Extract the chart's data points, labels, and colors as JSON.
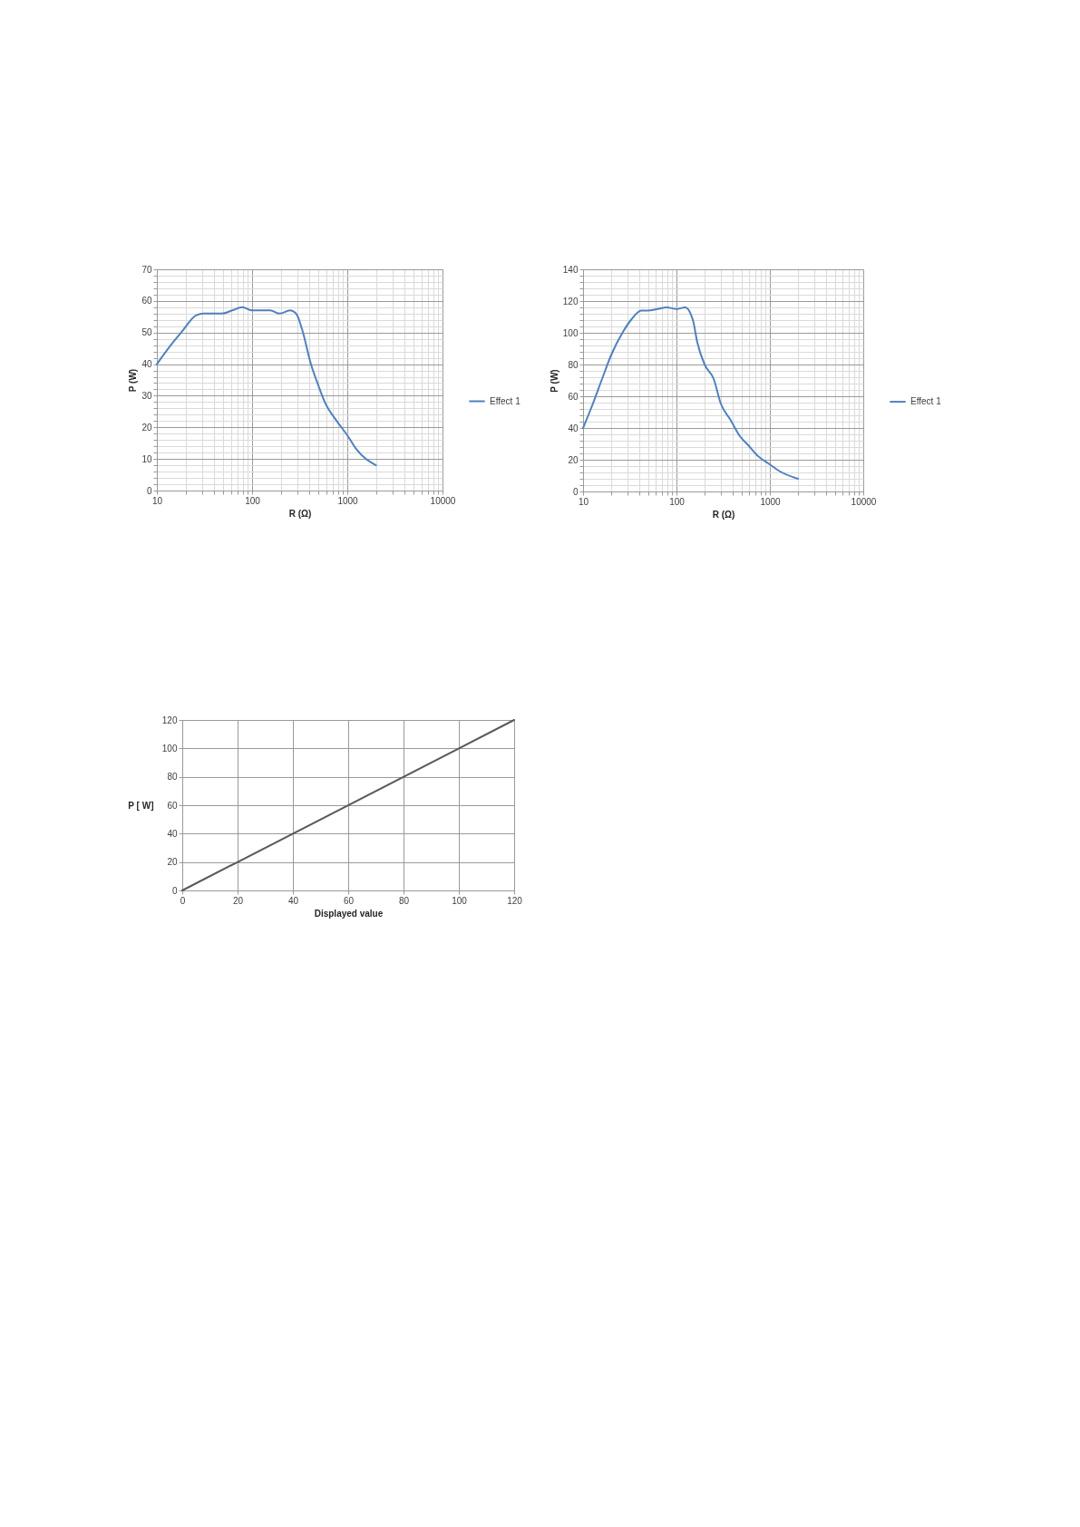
{
  "chart_data": [
    {
      "type": "line",
      "xlabel": "R (Ω)",
      "ylabel": "P (W)",
      "log": "x",
      "grid": true,
      "legend": "right",
      "xlim": [
        10,
        10000
      ],
      "ylim": [
        0,
        70
      ],
      "xticks": [
        10,
        {
          "value": 20,
          "label": null
        },
        {
          "value": 30,
          "label": null
        },
        {
          "value": 40,
          "label": null
        },
        {
          "value": 50,
          "label": null
        },
        {
          "value": 60,
          "label": null
        },
        {
          "value": 70,
          "label": null
        },
        {
          "value": 80,
          "label": null
        },
        {
          "value": 90,
          "label": null
        },
        100,
        {
          "value": 200,
          "label": null
        },
        {
          "value": 300,
          "label": null
        },
        {
          "value": 400,
          "label": null
        },
        {
          "value": 500,
          "label": null
        },
        {
          "value": 600,
          "label": null
        },
        {
          "value": 700,
          "label": null
        },
        {
          "value": 800,
          "label": null
        },
        {
          "value": 900,
          "label": null
        },
        1000,
        {
          "value": 2000,
          "label": null
        },
        {
          "value": 3000,
          "label": null
        },
        {
          "value": 4000,
          "label": null
        },
        {
          "value": 5000,
          "label": null
        },
        {
          "value": 6000,
          "label": null
        },
        {
          "value": 7000,
          "label": null
        },
        {
          "value": 8000,
          "label": null
        },
        {
          "value": 9000,
          "label": null
        },
        10000
      ],
      "yticks": [
        0,
        {
          "value": 2,
          "label": null
        },
        {
          "value": 4,
          "label": null
        },
        {
          "value": 6,
          "label": null
        },
        {
          "value": 8,
          "label": null
        },
        10,
        {
          "value": 12,
          "label": null
        },
        {
          "value": 14,
          "label": null
        },
        {
          "value": 16,
          "label": null
        },
        {
          "value": 18,
          "label": null
        },
        20,
        {
          "value": 22,
          "label": null
        },
        {
          "value": 24,
          "label": null
        },
        {
          "value": 26,
          "label": null
        },
        {
          "value": 28,
          "label": null
        },
        30,
        {
          "value": 32,
          "label": null
        },
        {
          "value": 34,
          "label": null
        },
        {
          "value": 36,
          "label": null
        },
        {
          "value": 38,
          "label": null
        },
        40,
        {
          "value": 42,
          "label": null
        },
        {
          "value": 44,
          "label": null
        },
        {
          "value": 46,
          "label": null
        },
        {
          "value": 48,
          "label": null
        },
        50,
        {
          "value": 52,
          "label": null
        },
        {
          "value": 54,
          "label": null
        },
        {
          "value": 56,
          "label": null
        },
        {
          "value": 58,
          "label": null
        },
        60,
        {
          "value": 62,
          "label": null
        },
        {
          "value": 64,
          "label": null
        },
        {
          "value": 66,
          "label": null
        },
        {
          "value": 68,
          "label": null
        },
        70
      ],
      "series": [
        {
          "name": "Effect 1",
          "color": "#4f81bd",
          "x": [
            10,
            14,
            18,
            26,
            31,
            48,
            62,
            79,
            100,
            155,
            195,
            250,
            290,
            335,
            415,
            500,
            580,
            775,
            1000,
            1250,
            2000
          ],
          "values": [
            40,
            46,
            50,
            55.5,
            56,
            56,
            57,
            58,
            57,
            57,
            56,
            57,
            56,
            51,
            40,
            33,
            28,
            22,
            17.5,
            13,
            8
          ]
        }
      ]
    },
    {
      "type": "line",
      "xlabel": "R (Ω)",
      "ylabel": "P (W)",
      "log": "x",
      "grid": true,
      "legend": "right",
      "xlim": [
        10,
        10000
      ],
      "ylim": [
        0,
        140
      ],
      "xticks": [
        10,
        {
          "value": 20,
          "label": null
        },
        {
          "value": 30,
          "label": null
        },
        {
          "value": 40,
          "label": null
        },
        {
          "value": 50,
          "label": null
        },
        {
          "value": 60,
          "label": null
        },
        {
          "value": 70,
          "label": null
        },
        {
          "value": 80,
          "label": null
        },
        {
          "value": 90,
          "label": null
        },
        100,
        {
          "value": 200,
          "label": null
        },
        {
          "value": 300,
          "label": null
        },
        {
          "value": 400,
          "label": null
        },
        {
          "value": 500,
          "label": null
        },
        {
          "value": 600,
          "label": null
        },
        {
          "value": 700,
          "label": null
        },
        {
          "value": 800,
          "label": null
        },
        {
          "value": 900,
          "label": null
        },
        1000,
        {
          "value": 2000,
          "label": null
        },
        {
          "value": 3000,
          "label": null
        },
        {
          "value": 4000,
          "label": null
        },
        {
          "value": 5000,
          "label": null
        },
        {
          "value": 6000,
          "label": null
        },
        {
          "value": 7000,
          "label": null
        },
        {
          "value": 8000,
          "label": null
        },
        {
          "value": 9000,
          "label": null
        },
        10000
      ],
      "yticks": [
        0,
        {
          "value": 4,
          "label": null
        },
        {
          "value": 8,
          "label": null
        },
        {
          "value": 12,
          "label": null
        },
        {
          "value": 16,
          "label": null
        },
        20,
        {
          "value": 24,
          "label": null
        },
        {
          "value": 28,
          "label": null
        },
        {
          "value": 32,
          "label": null
        },
        {
          "value": 36,
          "label": null
        },
        40,
        {
          "value": 44,
          "label": null
        },
        {
          "value": 48,
          "label": null
        },
        {
          "value": 52,
          "label": null
        },
        {
          "value": 56,
          "label": null
        },
        60,
        {
          "value": 64,
          "label": null
        },
        {
          "value": 68,
          "label": null
        },
        {
          "value": 72,
          "label": null
        },
        {
          "value": 76,
          "label": null
        },
        80,
        {
          "value": 84,
          "label": null
        },
        {
          "value": 88,
          "label": null
        },
        {
          "value": 92,
          "label": null
        },
        {
          "value": 96,
          "label": null
        },
        100,
        {
          "value": 104,
          "label": null
        },
        {
          "value": 108,
          "label": null
        },
        {
          "value": 112,
          "label": null
        },
        {
          "value": 116,
          "label": null
        },
        120,
        {
          "value": 124,
          "label": null
        },
        {
          "value": 128,
          "label": null
        },
        {
          "value": 132,
          "label": null
        },
        {
          "value": 136,
          "label": null
        },
        140
      ],
      "series": [
        {
          "name": "Effect 1",
          "color": "#4f81bd",
          "x": [
            10,
            12.3,
            16,
            20,
            27,
            32.5,
            42,
            49,
            63,
            79,
            100,
            124,
            150,
            167,
            200,
            250,
            300,
            380,
            475,
            590,
            740,
            1000,
            1250,
            2000
          ],
          "values": [
            40,
            53,
            71,
            86,
            101,
            108,
            114,
            114,
            115,
            116,
            115,
            116,
            108,
            94,
            80,
            71,
            55,
            45,
            35,
            29,
            22.5,
            17,
            13,
            8
          ]
        }
      ]
    },
    {
      "type": "line",
      "xlabel": "Displayed value",
      "ylabel": "P [ W]",
      "grid": true,
      "xlim": [
        0,
        120
      ],
      "ylim": [
        0,
        120
      ],
      "xticks": [
        0,
        20,
        40,
        60,
        80,
        100,
        120
      ],
      "yticks": [
        0,
        20,
        40,
        60,
        80,
        100,
        120
      ],
      "series": [
        {
          "color": "#595959",
          "x": [
            0,
            120
          ],
          "values": [
            0,
            120
          ]
        }
      ]
    }
  ]
}
